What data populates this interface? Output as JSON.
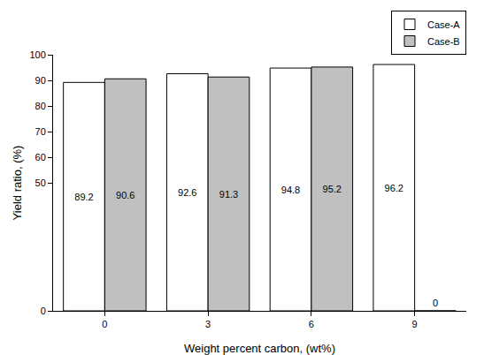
{
  "chart_data": {
    "type": "bar",
    "x_label": "Weight percent carbon, (wt%)",
    "y_label": "Yield ratio, (%)",
    "categories": [
      "0",
      "3",
      "6",
      "9"
    ],
    "series": [
      {
        "name": "Case-A",
        "color": "#ffffff",
        "values": [
          89.2,
          92.6,
          94.8,
          96.2
        ]
      },
      {
        "name": "Case-B",
        "color": "#c0c0c0",
        "values": [
          90.6,
          91.3,
          95.2,
          0
        ]
      }
    ],
    "ylim": [
      0,
      100
    ],
    "yticks": [
      0,
      50,
      60,
      70,
      80,
      90,
      100
    ],
    "grid": false,
    "legend": "top right",
    "data_labels": true
  }
}
